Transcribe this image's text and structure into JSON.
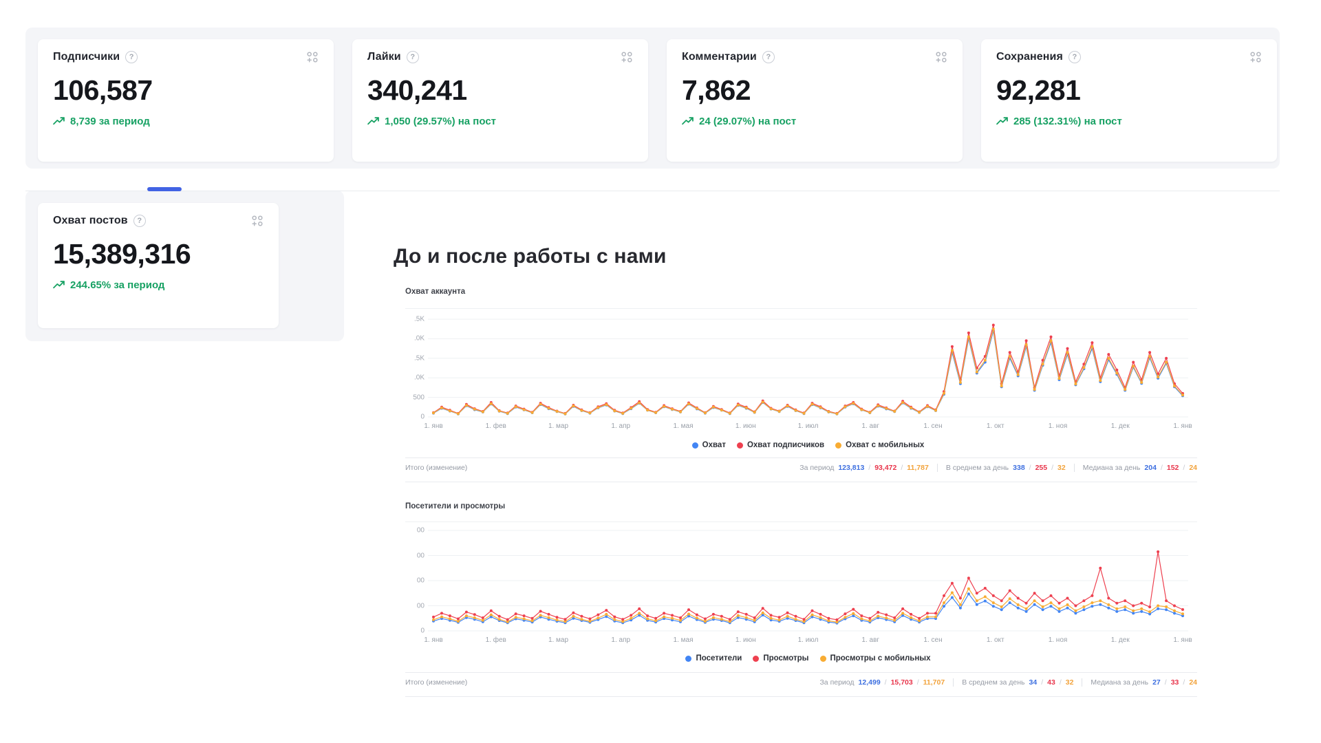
{
  "accent_colors": {
    "blue": "#4285f4",
    "red": "#ee404f",
    "yellow": "#f8ac33",
    "green": "#17a163",
    "scrollbar_blue": "#4263e4"
  },
  "cards": [
    {
      "title": "Подписчики",
      "value": "106,587",
      "change": "8,739 за период"
    },
    {
      "title": "Лайки",
      "value": "340,241",
      "change": "1,050 (29.57%) на пост"
    },
    {
      "title": "Комментарии",
      "value": "7,862",
      "change": "24 (29.07%) на пост"
    },
    {
      "title": "Сохранения",
      "value": "92,281",
      "change": "285 (132.31%) на пост"
    },
    {
      "title": "Охват постов",
      "value": "15,389,316",
      "change": "244.65% за период"
    }
  ],
  "section_title": "До и после работы с нами",
  "chart_data": [
    {
      "type": "line",
      "title": "Охват аккаунта",
      "ylim": [
        0,
        2500
      ],
      "grid": true,
      "legend_position": "bottom-center",
      "yticks": [
        {
          "label": ".5K",
          "v": 2500
        },
        {
          "label": ".0K",
          "v": 2000
        },
        {
          "label": ".5K",
          "v": 1500
        },
        {
          "label": ".0K",
          "v": 1000
        },
        {
          "label": "500",
          "v": 500
        },
        {
          "label": "0",
          "v": 0
        }
      ],
      "x_labels": [
        "1. янв",
        "1. фев",
        "1. мар",
        "1. апр",
        "1. мая",
        "1. июн",
        "1. июл",
        "1. авг",
        "1. сен",
        "1. окт",
        "1. ноя",
        "1. дек",
        "1. янв"
      ],
      "draw_order": [
        0,
        1,
        2
      ],
      "series": [
        {
          "name": "Охват",
          "color": "#4285f4",
          "values": [
            95,
            220,
            150,
            75,
            285,
            185,
            125,
            330,
            145,
            85,
            250,
            180,
            105,
            315,
            210,
            135,
            75,
            270,
            160,
            95,
            230,
            305,
            150,
            85,
            210,
            350,
            170,
            105,
            260,
            190,
            125,
            325,
            205,
            95,
            240,
            170,
            85,
            295,
            220,
            115,
            370,
            200,
            135,
            270,
            160,
            85,
            315,
            230,
            125,
            75,
            250,
            335,
            180,
            105,
            275,
            205,
            135,
            360,
            220,
            115,
            260,
            160,
            580,
            1650,
            850,
            2000,
            1120,
            1400,
            2200,
            770,
            1500,
            1050,
            1800,
            680,
            1320,
            1900,
            950,
            1600,
            820,
            1230,
            1750,
            900,
            1460,
            1090,
            680,
            1270,
            860,
            1510,
            990,
            1370,
            770,
            540
          ]
        },
        {
          "name": "Охват подписчиков",
          "color": "#ee404f",
          "values": [
            110,
            250,
            170,
            90,
            320,
            210,
            140,
            370,
            160,
            100,
            280,
            200,
            120,
            350,
            240,
            150,
            90,
            300,
            180,
            110,
            260,
            340,
            170,
            100,
            240,
            390,
            190,
            120,
            290,
            210,
            140,
            360,
            230,
            110,
            270,
            190,
            100,
            330,
            250,
            130,
            410,
            220,
            150,
            300,
            180,
            100,
            350,
            260,
            140,
            90,
            280,
            370,
            200,
            120,
            310,
            230,
            150,
            400,
            250,
            130,
            290,
            180,
            650,
            1800,
            950,
            2150,
            1250,
            1550,
            2350,
            850,
            1650,
            1150,
            1950,
            750,
            1450,
            2050,
            1050,
            1750,
            900,
            1350,
            1900,
            1000,
            1600,
            1200,
            750,
            1400,
            950,
            1650,
            1100,
            1500,
            850,
            600
          ]
        },
        {
          "name": "Охват с мобильных",
          "color": "#f8ac33",
          "values": [
            100,
            230,
            155,
            80,
            295,
            195,
            130,
            340,
            150,
            90,
            260,
            185,
            110,
            325,
            220,
            140,
            80,
            280,
            165,
            100,
            240,
            315,
            155,
            90,
            220,
            360,
            175,
            110,
            270,
            195,
            130,
            335,
            215,
            100,
            250,
            175,
            90,
            305,
            230,
            120,
            380,
            205,
            140,
            280,
            165,
            90,
            325,
            240,
            130,
            80,
            260,
            345,
            185,
            110,
            285,
            215,
            140,
            370,
            230,
            120,
            270,
            165,
            600,
            1700,
            880,
            2050,
            1150,
            1450,
            2250,
            790,
            1550,
            1080,
            1850,
            700,
            1350,
            1950,
            980,
            1650,
            840,
            1260,
            1800,
            930,
            1500,
            1120,
            700,
            1300,
            880,
            1550,
            1020,
            1400,
            790,
            560
          ]
        }
      ],
      "totals_label": "Итого (изменение)",
      "totals_sections": [
        {
          "label": "За период",
          "values": [
            "123,813",
            "93,472",
            "11,787"
          ]
        },
        {
          "label": "В среднем за день",
          "values": [
            "338",
            "255",
            "32"
          ]
        },
        {
          "label": "Медиана за день",
          "values": [
            "204",
            "152",
            "24"
          ]
        }
      ]
    },
    {
      "type": "line",
      "title": "Посетители и просмотры",
      "ylim": [
        0,
        400
      ],
      "grid": true,
      "legend_position": "bottom-center",
      "yticks": [
        {
          "label": "00",
          "v": 400
        },
        {
          "label": "00",
          "v": 300
        },
        {
          "label": "00",
          "v": 200
        },
        {
          "label": "00",
          "v": 100
        },
        {
          "label": "0",
          "v": 0
        }
      ],
      "x_labels": [
        "1. янв",
        "1. фев",
        "1. мар",
        "1. апр",
        "1. мая",
        "1. июн",
        "1. июл",
        "1. авг",
        "1. сен",
        "1. окт",
        "1. ноя",
        "1. дек",
        "1. янв"
      ],
      "draw_order": [
        0,
        2,
        1
      ],
      "series": [
        {
          "name": "Посетители",
          "color": "#4285f4",
          "values": [
            39,
            49,
            42,
            34,
            53,
            46,
            36,
            56,
            41,
            32,
            48,
            42,
            35,
            55,
            46,
            38,
            32,
            50,
            41,
            34,
            45,
            57,
            39,
            32,
            43,
            62,
            42,
            35,
            49,
            43,
            36,
            59,
            45,
            34,
            46,
            41,
            32,
            53,
            46,
            36,
            63,
            43,
            38,
            50,
            41,
            32,
            56,
            46,
            35,
            31,
            48,
            60,
            42,
            35,
            52,
            45,
            36,
            61,
            46,
            35,
            49,
            49,
            98,
            133,
            91,
            147,
            105,
            119,
            98,
            84,
            112,
            91,
            77,
            105,
            84,
            98,
            77,
            91,
            70,
            84,
            98,
            105,
            91,
            77,
            84,
            70,
            77,
            67,
            88,
            84,
            70,
            60
          ]
        },
        {
          "name": "Просмотры",
          "color": "#ee404f",
          "values": [
            55,
            70,
            60,
            48,
            75,
            65,
            52,
            80,
            58,
            45,
            68,
            60,
            50,
            78,
            66,
            54,
            46,
            72,
            58,
            48,
            64,
            82,
            56,
            46,
            62,
            88,
            60,
            50,
            70,
            62,
            52,
            84,
            64,
            48,
            66,
            58,
            46,
            76,
            66,
            52,
            90,
            62,
            54,
            72,
            58,
            46,
            80,
            66,
            50,
            44,
            68,
            86,
            60,
            50,
            74,
            64,
            52,
            88,
            66,
            50,
            70,
            70,
            140,
            190,
            130,
            210,
            150,
            170,
            140,
            120,
            160,
            130,
            110,
            150,
            120,
            140,
            110,
            130,
            100,
            120,
            140,
            250,
            130,
            110,
            120,
            100,
            110,
            95,
            315,
            120,
            100,
            85
          ]
        },
        {
          "name": "Просмотры с мобильных",
          "color": "#f8ac33",
          "values": [
            44,
            56,
            48,
            38,
            60,
            52,
            42,
            64,
            46,
            36,
            54,
            48,
            40,
            62,
            53,
            43,
            37,
            58,
            46,
            38,
            51,
            66,
            45,
            37,
            50,
            70,
            48,
            40,
            56,
            50,
            42,
            67,
            51,
            38,
            53,
            46,
            37,
            61,
            53,
            42,
            72,
            50,
            43,
            58,
            46,
            37,
            64,
            53,
            40,
            35,
            54,
            69,
            48,
            40,
            59,
            51,
            42,
            70,
            53,
            40,
            56,
            56,
            112,
            152,
            104,
            168,
            120,
            136,
            112,
            96,
            128,
            104,
            88,
            120,
            96,
            112,
            88,
            104,
            80,
            96,
            112,
            120,
            104,
            88,
            96,
            80,
            88,
            76,
            100,
            96,
            80,
            68
          ]
        }
      ],
      "totals_label": "Итого (изменение)",
      "totals_sections": [
        {
          "label": "За период",
          "values": [
            "12,499",
            "15,703",
            "11,707"
          ]
        },
        {
          "label": "В среднем за день",
          "values": [
            "34",
            "43",
            "32"
          ]
        },
        {
          "label": "Медиана за день",
          "values": [
            "27",
            "33",
            "24"
          ]
        }
      ]
    }
  ]
}
